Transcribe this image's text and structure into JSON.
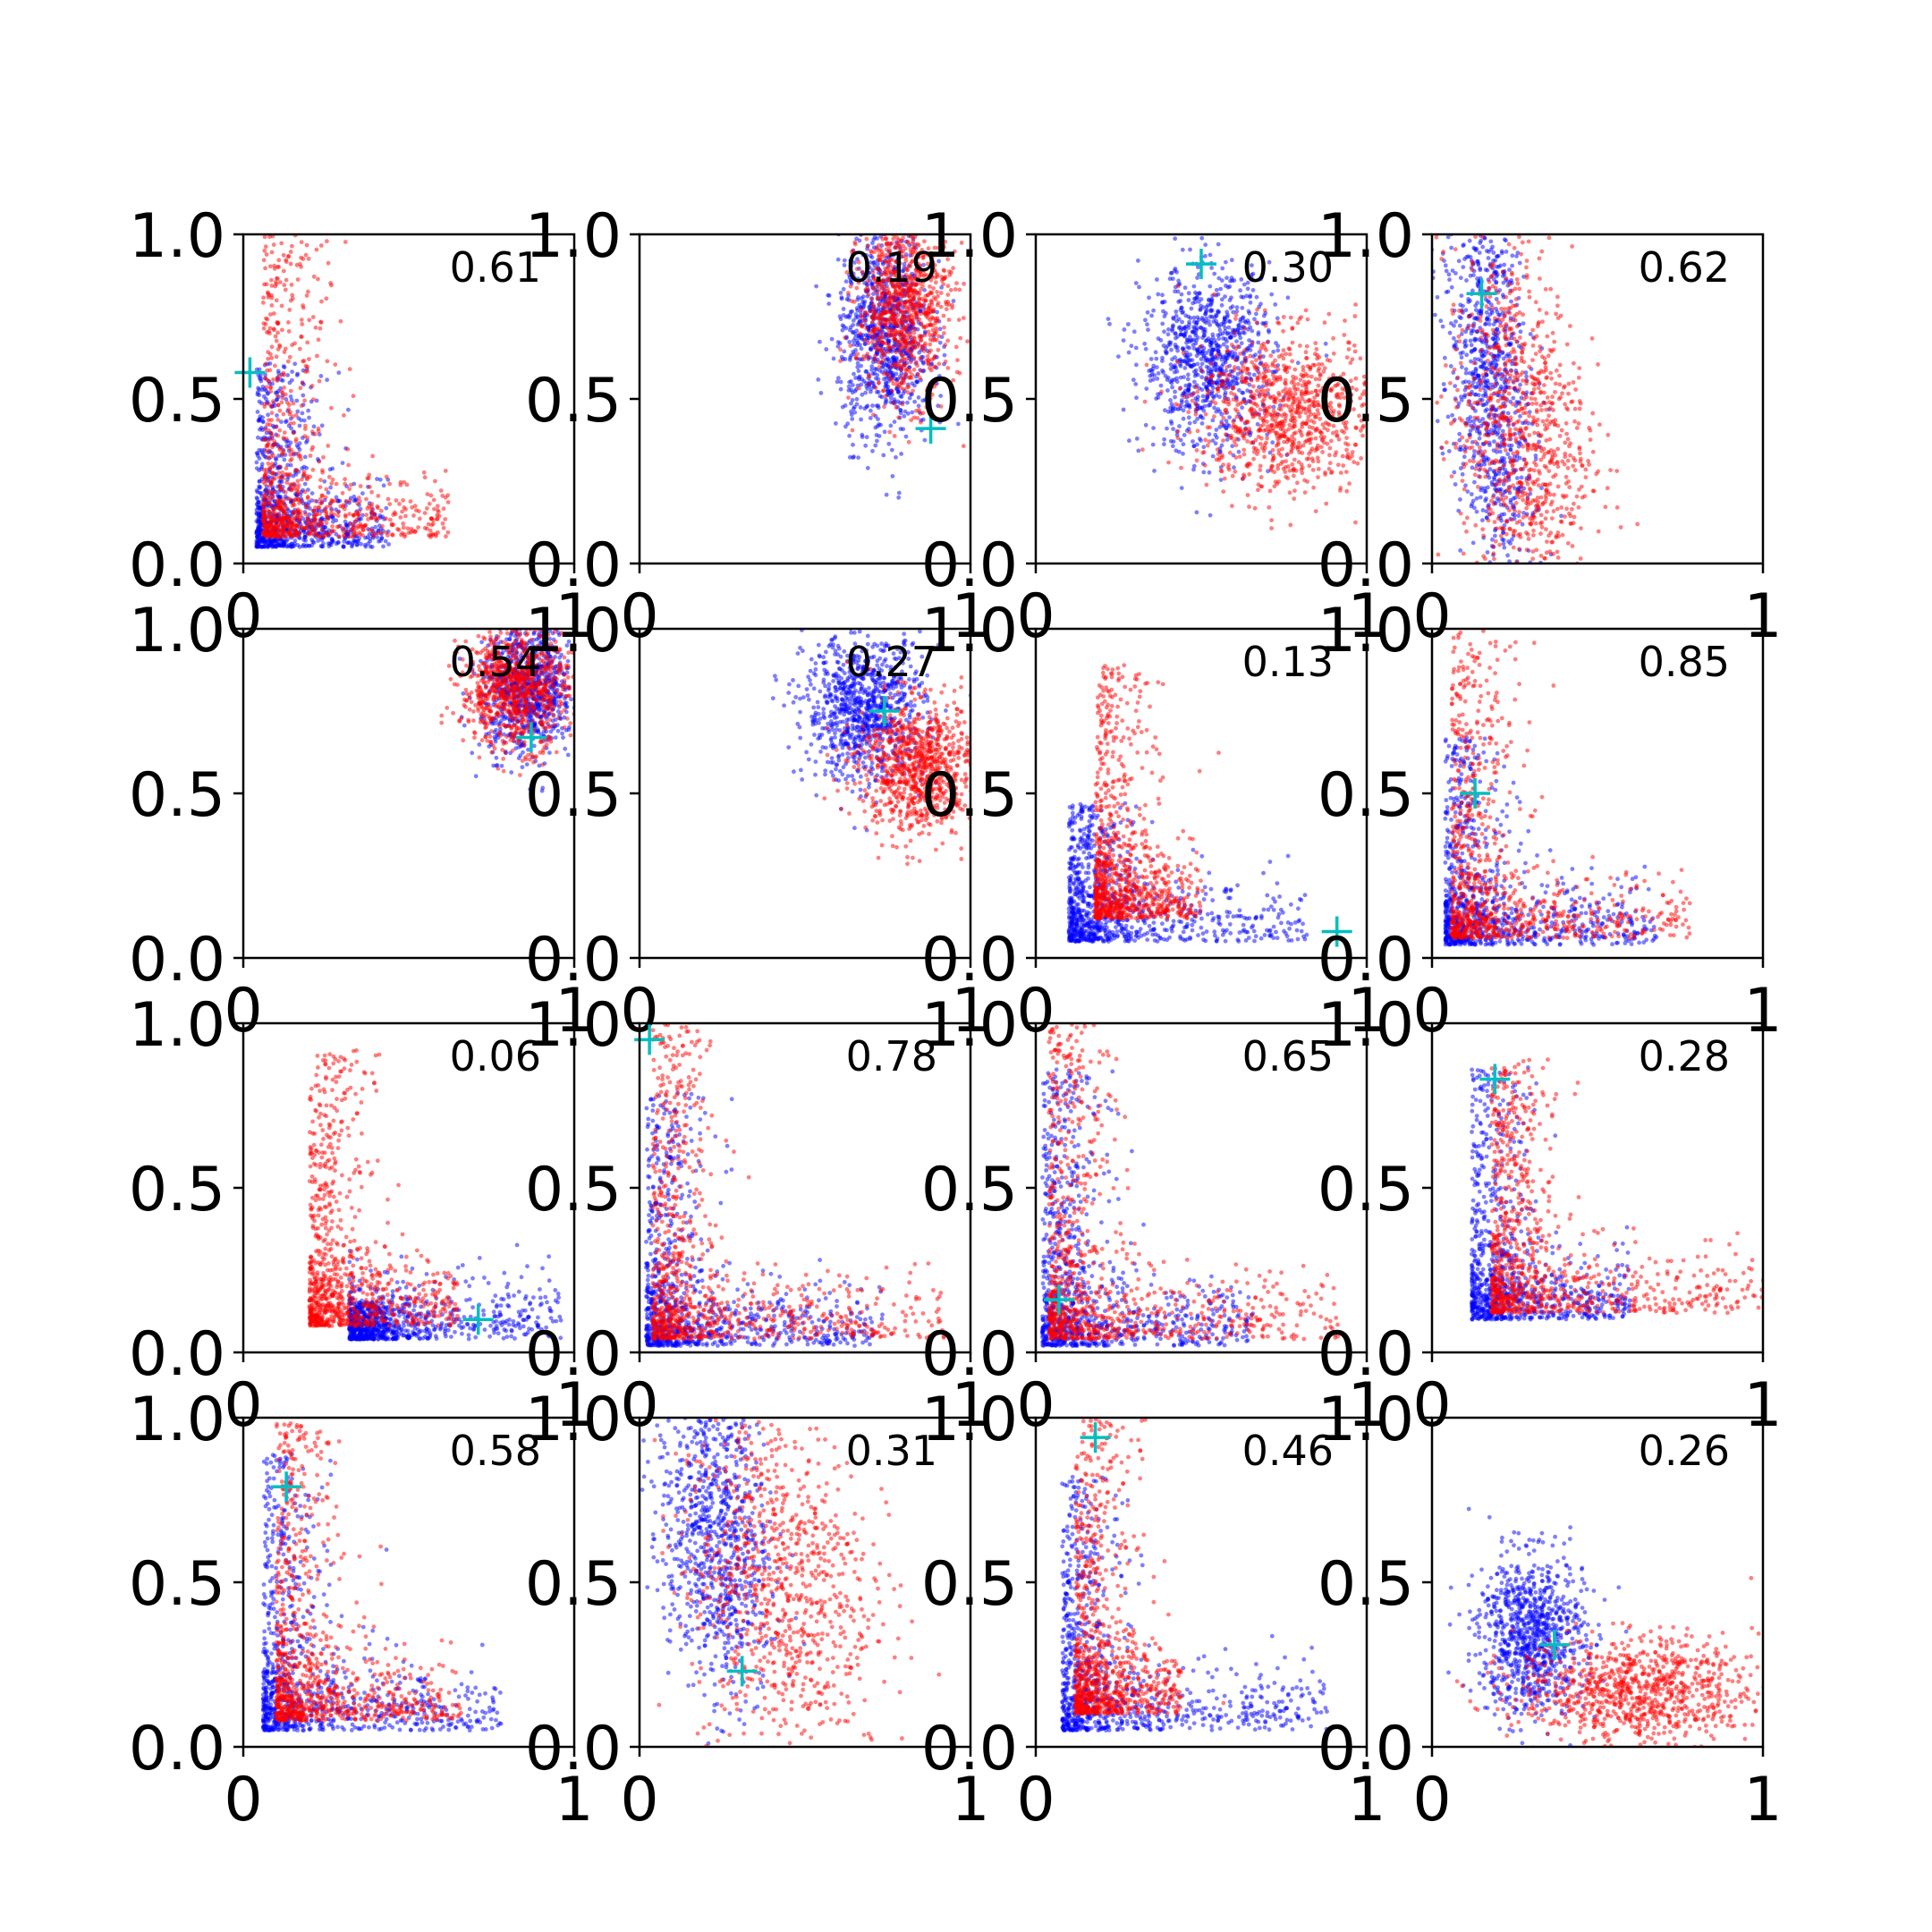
{
  "colors": {
    "series_a": "#0000ff",
    "series_b": "#ff0000",
    "marker": "#00bfbf",
    "axes": "#000000",
    "background": "#ffffff"
  },
  "chart_data": {
    "type": "scatter",
    "layout": "4x4 grid of scatter panels",
    "xlim": [
      0,
      1
    ],
    "ylim": [
      0,
      1
    ],
    "x_ticks": [
      "0",
      "1"
    ],
    "y_ticks": [
      "0.0",
      "0.5",
      "1.0"
    ],
    "grid": false,
    "legend": "none",
    "panels": [
      {
        "value_label": "0.61",
        "marker": {
          "x": 0.02,
          "y": 0.58
        },
        "shape": "L",
        "dist": {
          "blue": {
            "cx": 0.04,
            "cy": 0.05,
            "sx": 0.25,
            "sy": 0.4
          },
          "red": {
            "cx": 0.06,
            "cy": 0.08,
            "sx": 0.35,
            "sy": 0.7
          }
        }
      },
      {
        "value_label": "0.19",
        "marker": {
          "x": 0.88,
          "y": 0.41
        },
        "shape": "blob",
        "dist": {
          "blue": {
            "cx": 0.74,
            "cy": 0.7,
            "sx": 0.07,
            "sy": 0.16
          },
          "red": {
            "cx": 0.8,
            "cy": 0.78,
            "sx": 0.07,
            "sy": 0.14
          }
        }
      },
      {
        "value_label": "0.30",
        "marker": {
          "x": 0.5,
          "y": 0.91
        },
        "shape": "blob",
        "dist": {
          "blue": {
            "cx": 0.52,
            "cy": 0.62,
            "sx": 0.1,
            "sy": 0.14
          },
          "red": {
            "cx": 0.76,
            "cy": 0.46,
            "sx": 0.14,
            "sy": 0.12
          }
        }
      },
      {
        "value_label": "0.62",
        "marker": {
          "x": 0.15,
          "y": 0.82
        },
        "shape": "band",
        "dist": {
          "blue": {
            "cx": 0.14,
            "cy": 0.55,
            "sx": 0.06,
            "sy": 0.3
          },
          "red": {
            "cx": 0.22,
            "cy": 0.4,
            "sx": 0.1,
            "sy": 0.28
          }
        }
      },
      {
        "value_label": "0.54",
        "marker": {
          "x": 0.87,
          "y": 0.67
        },
        "shape": "blob",
        "dist": {
          "blue": {
            "cx": 0.86,
            "cy": 0.82,
            "sx": 0.07,
            "sy": 0.1
          },
          "red": {
            "cx": 0.82,
            "cy": 0.82,
            "sx": 0.08,
            "sy": 0.09
          }
        }
      },
      {
        "value_label": "0.27",
        "marker": {
          "x": 0.74,
          "y": 0.75
        },
        "shape": "blob",
        "dist": {
          "blue": {
            "cx": 0.68,
            "cy": 0.76,
            "sx": 0.09,
            "sy": 0.11
          },
          "red": {
            "cx": 0.84,
            "cy": 0.58,
            "sx": 0.09,
            "sy": 0.1
          }
        }
      },
      {
        "value_label": "0.13",
        "marker": {
          "x": 0.91,
          "y": 0.08
        },
        "shape": "L",
        "dist": {
          "blue": {
            "cx": 0.1,
            "cy": 0.05,
            "sx": 0.45,
            "sy": 0.3
          },
          "red": {
            "cx": 0.18,
            "cy": 0.12,
            "sx": 0.2,
            "sy": 0.55
          }
        }
      },
      {
        "value_label": "0.85",
        "marker": {
          "x": 0.13,
          "y": 0.5
        },
        "shape": "L",
        "dist": {
          "blue": {
            "cx": 0.04,
            "cy": 0.04,
            "sx": 0.4,
            "sy": 0.45
          },
          "red": {
            "cx": 0.06,
            "cy": 0.06,
            "sx": 0.45,
            "sy": 0.7
          }
        }
      },
      {
        "value_label": "0.06",
        "marker": {
          "x": 0.71,
          "y": 0.1
        },
        "shape": "L",
        "dist": {
          "blue": {
            "cx": 0.32,
            "cy": 0.04,
            "sx": 0.4,
            "sy": 0.08
          },
          "red": {
            "cx": 0.2,
            "cy": 0.08,
            "sx": 0.28,
            "sy": 0.6
          }
        }
      },
      {
        "value_label": "0.78",
        "marker": {
          "x": 0.03,
          "y": 0.95
        },
        "shape": "L",
        "dist": {
          "blue": {
            "cx": 0.02,
            "cy": 0.02,
            "sx": 0.45,
            "sy": 0.55
          },
          "red": {
            "cx": 0.04,
            "cy": 0.04,
            "sx": 0.55,
            "sy": 0.75
          }
        }
      },
      {
        "value_label": "0.65",
        "marker": {
          "x": 0.07,
          "y": 0.16
        },
        "shape": "L",
        "dist": {
          "blue": {
            "cx": 0.02,
            "cy": 0.02,
            "sx": 0.4,
            "sy": 0.6
          },
          "red": {
            "cx": 0.04,
            "cy": 0.04,
            "sx": 0.55,
            "sy": 0.7
          }
        }
      },
      {
        "value_label": "0.28",
        "marker": {
          "x": 0.19,
          "y": 0.83
        },
        "shape": "L",
        "dist": {
          "blue": {
            "cx": 0.12,
            "cy": 0.1,
            "sx": 0.3,
            "sy": 0.55
          },
          "red": {
            "cx": 0.18,
            "cy": 0.12,
            "sx": 0.55,
            "sy": 0.55
          }
        }
      },
      {
        "value_label": "0.58",
        "marker": {
          "x": 0.13,
          "y": 0.79
        },
        "shape": "L",
        "dist": {
          "blue": {
            "cx": 0.06,
            "cy": 0.05,
            "sx": 0.45,
            "sy": 0.6
          },
          "red": {
            "cx": 0.1,
            "cy": 0.08,
            "sx": 0.35,
            "sy": 0.65
          }
        }
      },
      {
        "value_label": "0.31",
        "marker": {
          "x": 0.31,
          "y": 0.23
        },
        "shape": "band",
        "dist": {
          "blue": {
            "cx": 0.2,
            "cy": 0.65,
            "sx": 0.08,
            "sy": 0.25
          },
          "red": {
            "cx": 0.38,
            "cy": 0.5,
            "sx": 0.14,
            "sy": 0.28
          }
        }
      },
      {
        "value_label": "0.46",
        "marker": {
          "x": 0.18,
          "y": 0.94
        },
        "shape": "L",
        "dist": {
          "blue": {
            "cx": 0.08,
            "cy": 0.05,
            "sx": 0.5,
            "sy": 0.55
          },
          "red": {
            "cx": 0.12,
            "cy": 0.1,
            "sx": 0.2,
            "sy": 0.65
          }
        }
      },
      {
        "value_label": "0.26",
        "marker": {
          "x": 0.37,
          "y": 0.31
        },
        "shape": "blob",
        "dist": {
          "blue": {
            "cx": 0.3,
            "cy": 0.34,
            "sx": 0.08,
            "sy": 0.12
          },
          "red": {
            "cx": 0.62,
            "cy": 0.17,
            "sx": 0.18,
            "sy": 0.08
          }
        }
      }
    ]
  }
}
